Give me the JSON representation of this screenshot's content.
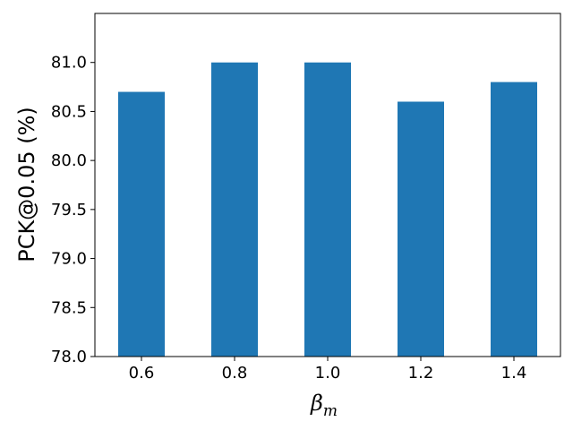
{
  "chart_data": {
    "type": "bar",
    "categories": [
      "0.6",
      "0.8",
      "1.0",
      "1.2",
      "1.4"
    ],
    "values": [
      80.7,
      81.0,
      81.0,
      80.6,
      80.8
    ],
    "xlabel_base": "β",
    "xlabel_sub": "m",
    "ylabel": "PCK@0.05 (%)",
    "ylim": [
      78.0,
      81.5
    ],
    "yticks": [
      "78.0",
      "78.5",
      "79.0",
      "79.5",
      "80.0",
      "80.5",
      "81.0"
    ],
    "bar_color": "#1f77b4",
    "grid": false,
    "legend": "none"
  }
}
